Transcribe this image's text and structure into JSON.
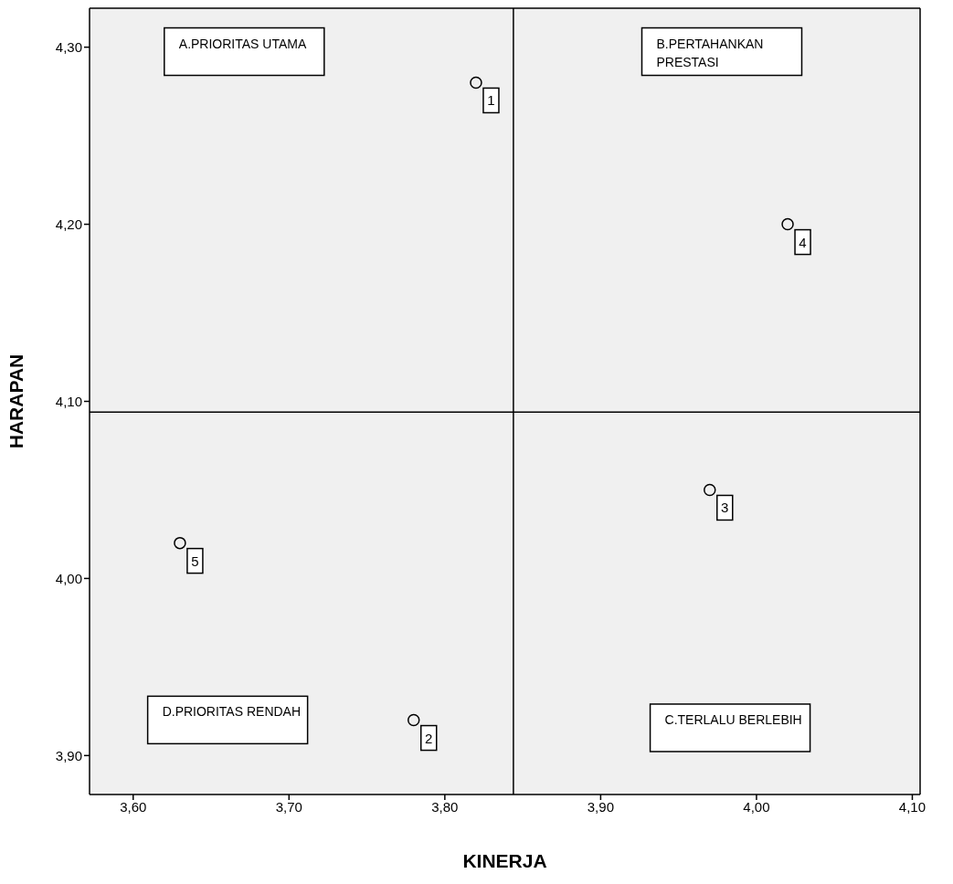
{
  "chart_data": {
    "type": "scatter",
    "xlabel": "KINERJA",
    "ylabel": "HARAPAN",
    "x": [
      3.82,
      3.78,
      3.97,
      4.02,
      3.63
    ],
    "series": [
      {
        "color": "#000000",
        "values": [
          4.28,
          3.92,
          4.05,
          4.2,
          4.02
        ]
      }
    ],
    "xlim": [
      3.572,
      4.105
    ],
    "ylim": [
      3.878,
      4.322
    ],
    "xticks": [
      {
        "value": 3.6,
        "label": "3,60"
      },
      {
        "value": 3.7,
        "label": "3,70"
      },
      {
        "value": 3.8,
        "label": "3,80"
      },
      {
        "value": 3.9,
        "label": "3,90"
      },
      {
        "value": 4.0,
        "label": "4,00"
      },
      {
        "value": 4.1,
        "label": "4,10"
      }
    ],
    "yticks": [
      {
        "value": 3.9,
        "label": "3,90"
      },
      {
        "value": 4.0,
        "label": "4,00"
      },
      {
        "value": 4.1,
        "label": "4,10"
      },
      {
        "value": 4.2,
        "label": "4,20"
      },
      {
        "value": 4.3,
        "label": "4,30"
      }
    ],
    "ref_lines": [
      {
        "axis": "x",
        "value": 3.844,
        "color": "#000000"
      },
      {
        "axis": "y",
        "value": 4.094,
        "color": "#000000"
      }
    ],
    "annotations": [
      "A.PRIORITAS UTAMA",
      "B.PERTAHANKAN PRESTASI",
      "C.TERLALU BERLEBIH",
      "D.PRIORITAS RENDAH",
      {
        "text": "1",
        "x": 3.82,
        "y": 4.28
      },
      {
        "text": "2",
        "x": 3.78,
        "y": 3.92
      },
      {
        "text": "3",
        "x": 3.97,
        "y": 4.05
      },
      {
        "text": "4",
        "x": 4.02,
        "y": 4.2
      },
      {
        "text": "5",
        "x": 3.63,
        "y": 4.02
      }
    ],
    "grid": false,
    "legend": false,
    "marker": "circle"
  }
}
